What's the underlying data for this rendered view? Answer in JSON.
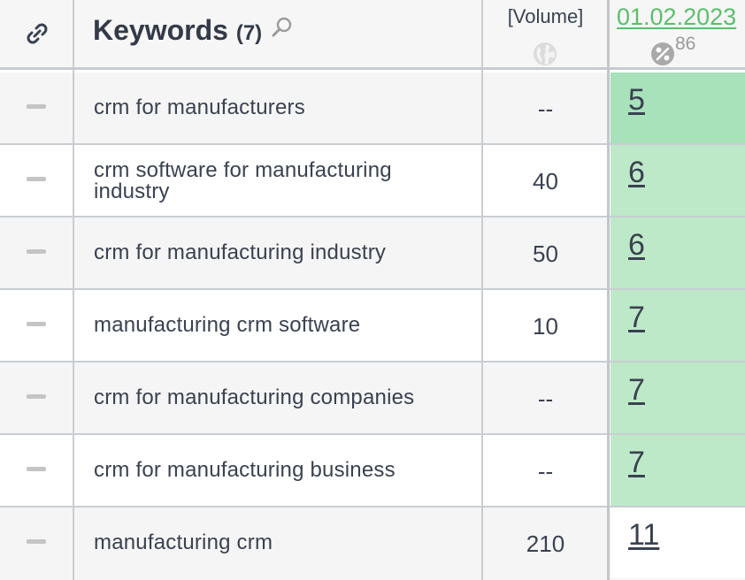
{
  "header": {
    "keywords_label": "Keywords",
    "keywords_count": "(7)",
    "volume_label": "[Volume]",
    "date_label": "01.02.2023",
    "visibility_pct": "86"
  },
  "colors": {
    "accent_green": "#5cbe6c",
    "top5_bg": "#a7e2bb",
    "top10_bg": "#bde9c9"
  },
  "rows": [
    {
      "keyword": "crm for manufacturers",
      "volume": "--",
      "position": "5"
    },
    {
      "keyword": "crm software for manufacturing industry",
      "volume": "40",
      "position": "6"
    },
    {
      "keyword": "crm for manufacturing industry",
      "volume": "50",
      "position": "6"
    },
    {
      "keyword": "manufacturing crm software",
      "volume": "10",
      "position": "7"
    },
    {
      "keyword": "crm for manufacturing companies",
      "volume": "--",
      "position": "7"
    },
    {
      "keyword": "crm for manufacturing business",
      "volume": "--",
      "position": "7"
    },
    {
      "keyword": "manufacturing crm",
      "volume": "210",
      "position": "11"
    }
  ]
}
